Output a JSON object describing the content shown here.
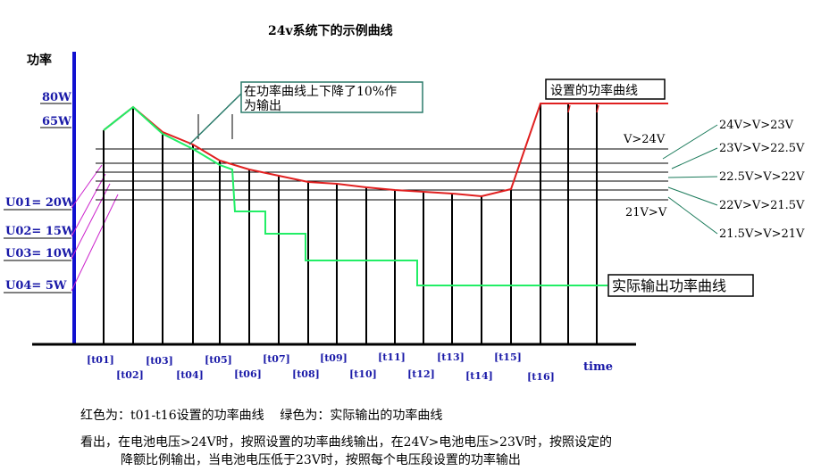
{
  "title": "24v系统下的示例曲线",
  "y_axis_label": "功率",
  "x_axis_label": "time",
  "power_labels": [
    "80W",
    "65W"
  ],
  "u_labels": [
    "U01= 20W",
    "U02= 15W",
    "U03= 10W",
    "U04= 5W"
  ],
  "time_labels": [
    "[t01]",
    "[t02]",
    "[t03]",
    "[t04]",
    "[t05]",
    "[t06]",
    "[t07]",
    "[t08]",
    "[t09]",
    "[t10]",
    "[t11]",
    "[t12]",
    "[t13]",
    "[t14]",
    "[t15]",
    "[t16]"
  ],
  "voltage_labels": [
    "24V>V>23V",
    "23V>V>22.5V",
    "22.5V>V>22V",
    "22V>V>21.5V",
    "21.5V>V>21V"
  ],
  "v_gt_24": "V>24V",
  "v_lt_21": "21V>V",
  "annotation_box": {
    "line1": "在功率曲线上下降了10%作",
    "line2": "为输出"
  },
  "set_curve_box": "设置的功率曲线",
  "actual_curve_box": "实际输出功率曲线",
  "legend_line": "红色为：t01-t16设置的功率曲线    绿色为：实际输出的功率曲线",
  "note_line1": "看出，在电池电压>24V时，按照设置的功率曲线输出，在24V>电池电压>23V时，按照设定的",
  "note_line2": "降额比例输出，当电池电压低于23V时，按照每个电压段设置的功率输出",
  "colors": {
    "set_curve": "#e02020",
    "actual_curve": "#22ee66",
    "axis": "#1010d0",
    "text_blue": "#1a1aa8",
    "box_border": "#2a7a6a"
  }
}
